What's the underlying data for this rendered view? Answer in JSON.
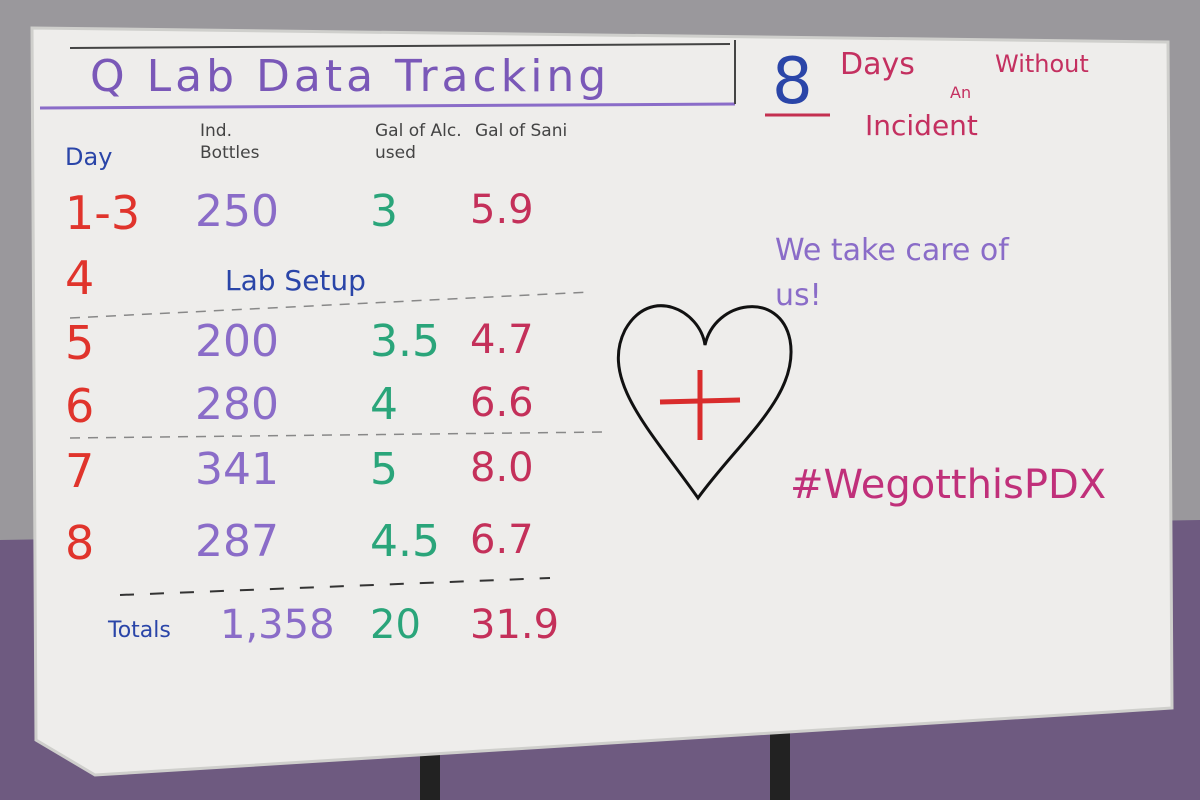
{
  "header": {
    "title": "Q Lab Data Tracking",
    "days_count": "8",
    "days_line_1": "Days",
    "days_line_2": "An",
    "days_line_3": "Without",
    "days_line_4": "Incident"
  },
  "table": {
    "columns": [
      "Day",
      "Ind. Bottles",
      "Gal of Alc. used",
      "Gal of Sani"
    ],
    "rows": [
      [
        "1-3",
        "250",
        "3",
        "5.9"
      ],
      [
        "4",
        "Lab Setup"
      ],
      [
        "5",
        "200",
        "3.5",
        "4.7"
      ],
      [
        "6",
        "280",
        "4",
        "6.6"
      ],
      [
        "7",
        "341",
        "5",
        "8.0"
      ],
      [
        "8",
        "287",
        "4.5",
        "6.7"
      ]
    ],
    "totals": [
      "Totals",
      "1,358",
      "20",
      "31.9"
    ]
  },
  "notes": [
    "We take care of us!",
    "#WegotthisPDX"
  ]
}
